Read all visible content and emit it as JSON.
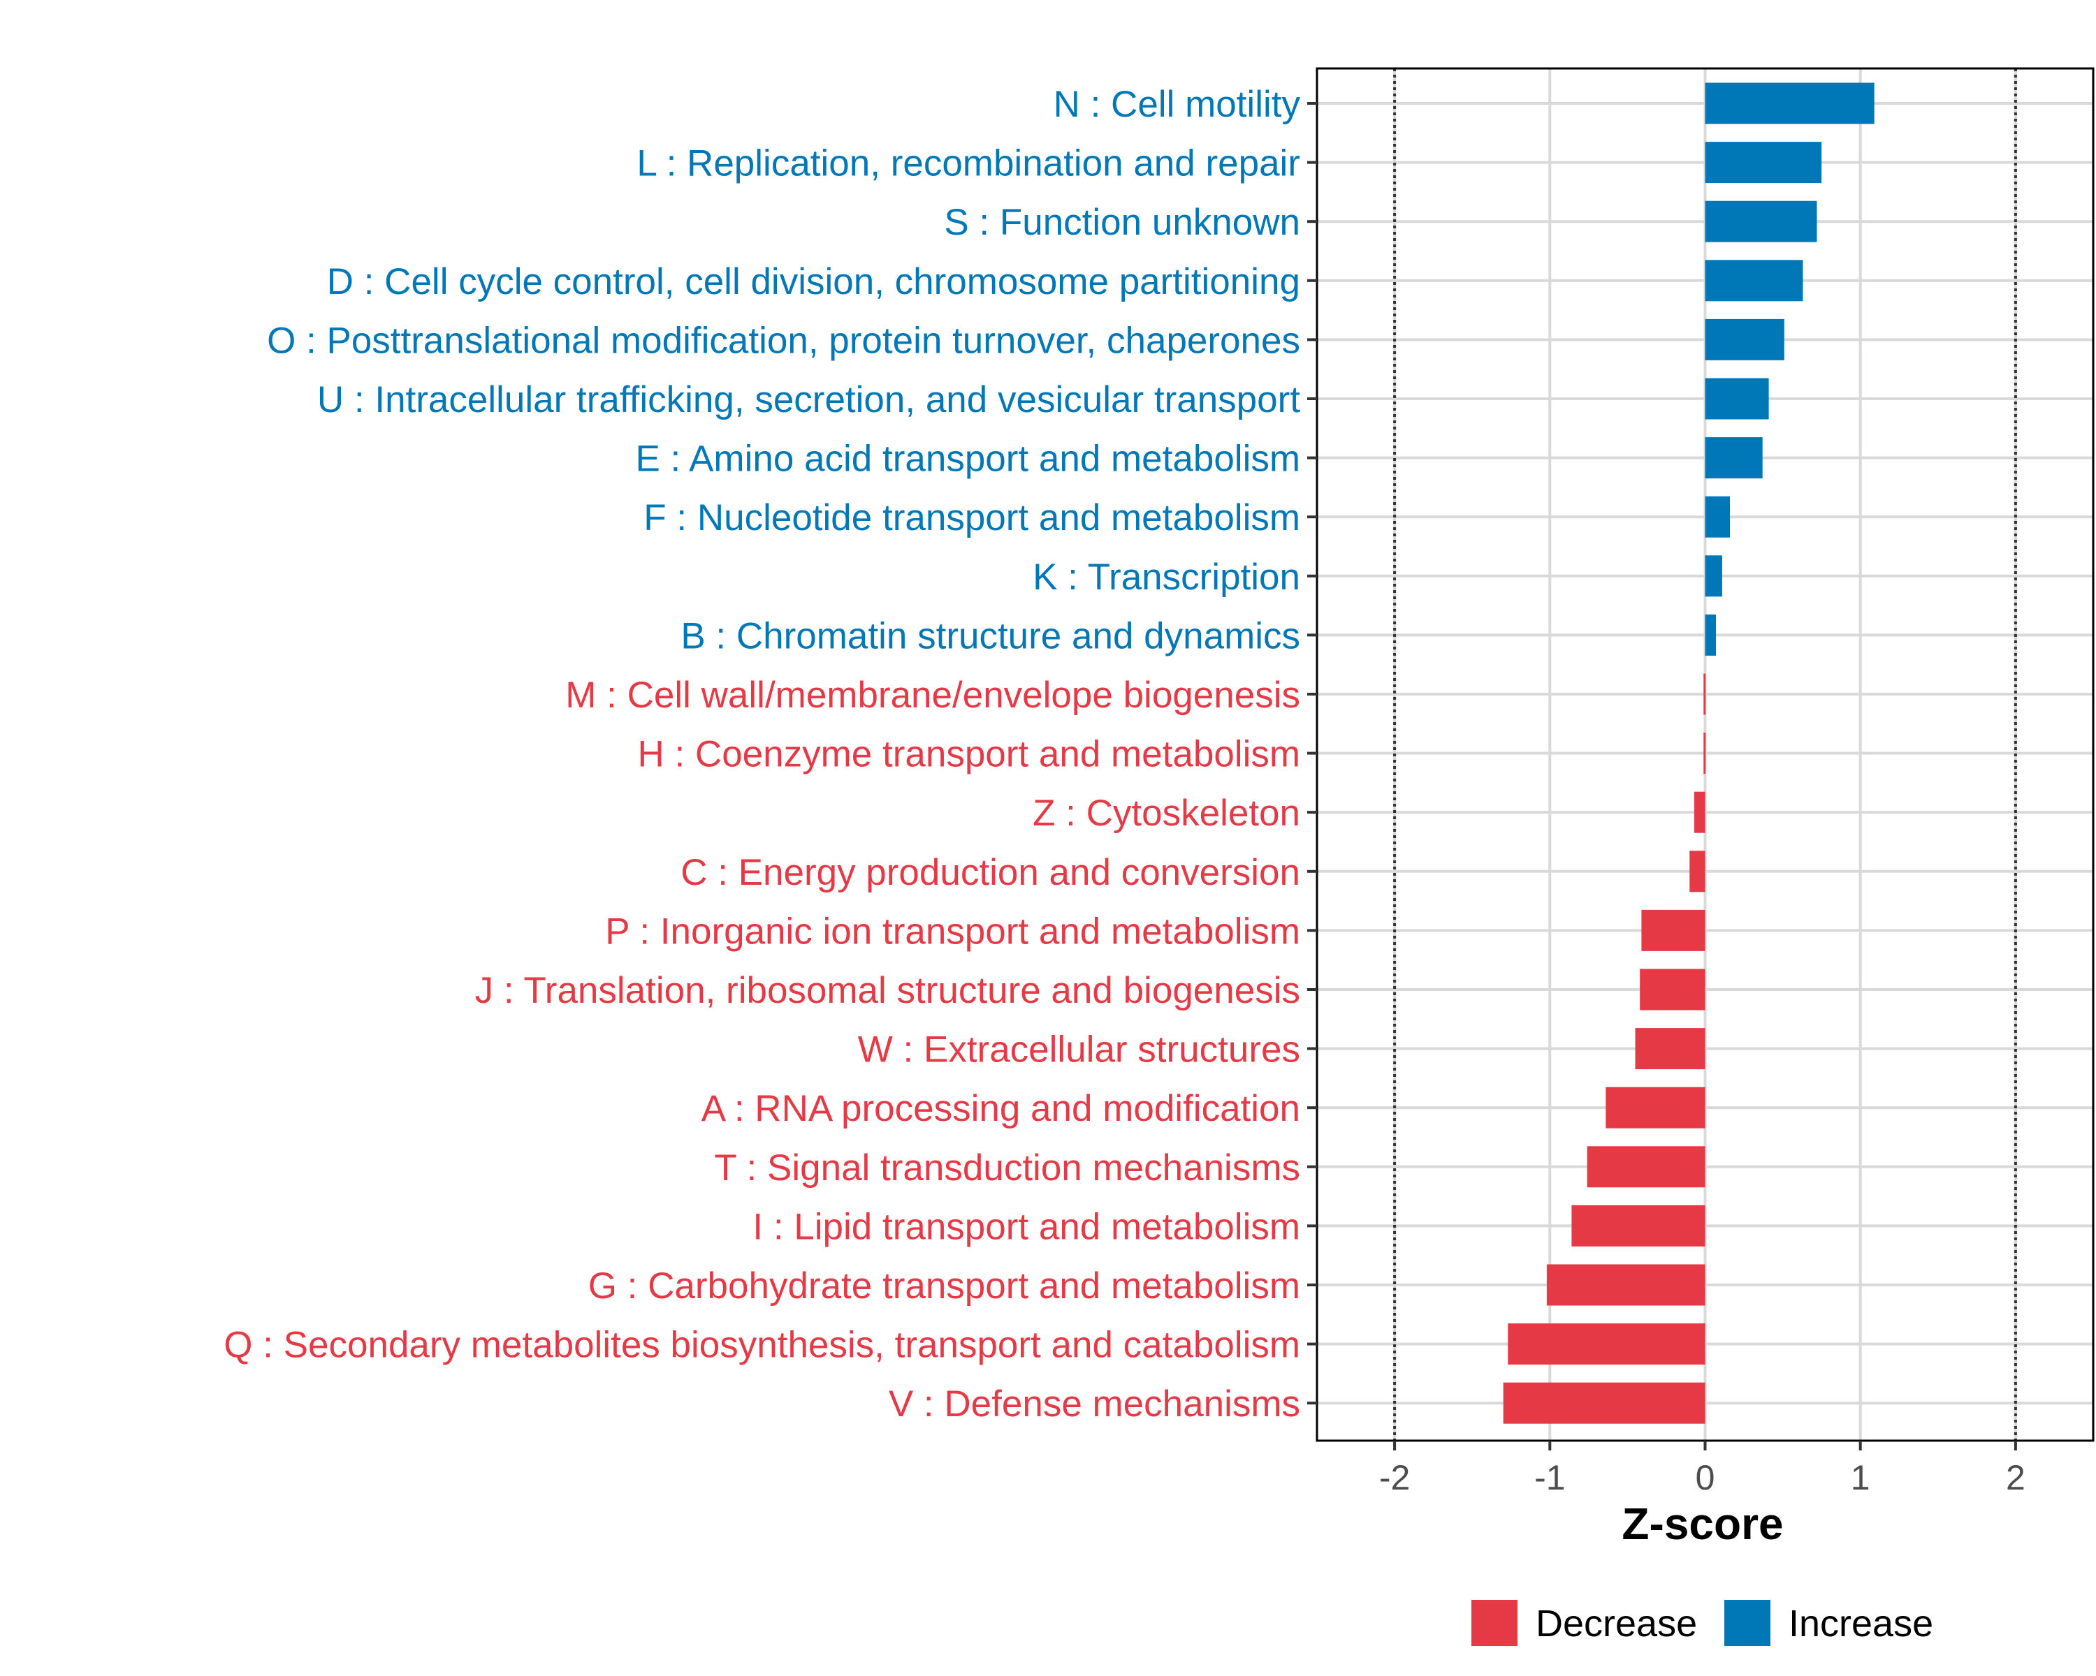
{
  "chart_data": {
    "type": "bar",
    "orientation": "horizontal",
    "xlabel": "Z-score",
    "ylabel": "",
    "xlim": [
      -2.5,
      2.5
    ],
    "xticks": [
      -2,
      -1,
      0,
      1,
      2
    ],
    "x_tick_labels": [
      "-2",
      "-1",
      "0",
      "1",
      "2"
    ],
    "reference_lines": [
      -2,
      2
    ],
    "grid": true,
    "categories": [
      "N : Cell motility",
      "L : Replication, recombination and repair",
      "S : Function unknown",
      "D : Cell cycle control, cell division, chromosome partitioning",
      "O : Posttranslational modification, protein turnover, chaperones",
      "U : Intracellular trafficking, secretion, and vesicular transport",
      "E : Amino acid transport and metabolism",
      "F : Nucleotide transport and metabolism",
      "K : Transcription",
      "B : Chromatin structure and dynamics",
      "M : Cell wall/membrane/envelope biogenesis",
      "H : Coenzyme transport and metabolism",
      "Z : Cytoskeleton",
      "C : Energy production and conversion",
      "P : Inorganic ion transport and metabolism",
      "J : Translation, ribosomal structure and biogenesis",
      "W : Extracellular structures",
      "A : RNA processing and modification",
      "T : Signal transduction mechanisms",
      "I : Lipid transport and metabolism",
      "G : Carbohydrate transport and metabolism",
      "Q : Secondary metabolites biosynthesis, transport and catabolism",
      "V : Defense mechanisms"
    ],
    "values": [
      1.09,
      0.75,
      0.72,
      0.63,
      0.51,
      0.41,
      0.37,
      0.16,
      0.11,
      0.07,
      -0.01,
      -0.01,
      -0.07,
      -0.1,
      -0.41,
      -0.42,
      -0.45,
      -0.64,
      -0.76,
      -0.86,
      -1.02,
      -1.27,
      -1.3
    ],
    "groups": [
      "Increase",
      "Increase",
      "Increase",
      "Increase",
      "Increase",
      "Increase",
      "Increase",
      "Increase",
      "Increase",
      "Increase",
      "Decrease",
      "Decrease",
      "Decrease",
      "Decrease",
      "Decrease",
      "Decrease",
      "Decrease",
      "Decrease",
      "Decrease",
      "Decrease",
      "Decrease",
      "Decrease",
      "Decrease"
    ],
    "legend": [
      {
        "name": "Decrease",
        "color": "#e63946"
      },
      {
        "name": "Increase",
        "color": "#0077b6"
      }
    ],
    "legend_position": "bottom"
  }
}
